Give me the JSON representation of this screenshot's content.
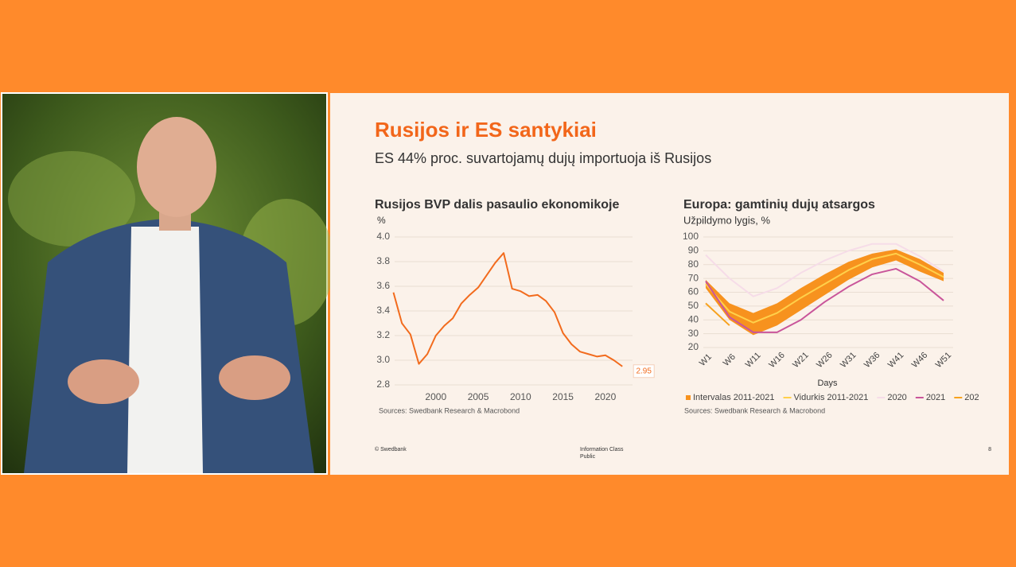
{
  "slide": {
    "title": "Rusijos ir ES santykiai",
    "subtitle": "ES 44% proc. suvartojamų dujų importuoja iš Rusijos",
    "footer": {
      "left": "© Swedbank",
      "center": [
        "Information Class",
        "Public"
      ],
      "page": "8"
    }
  },
  "chart_data": [
    {
      "type": "line",
      "title": "Rusijos BVP dalis pasaulio ekonomikoje",
      "y_label": "%",
      "source": "Sources: Swedbank Research & Macrobond",
      "x": [
        1995,
        1996,
        1997,
        1998,
        1999,
        2000,
        2001,
        2002,
        2003,
        2004,
        2005,
        2006,
        2007,
        2008,
        2009,
        2010,
        2011,
        2012,
        2013,
        2014,
        2015,
        2016,
        2017,
        2018,
        2019,
        2020,
        2021,
        2022
      ],
      "series": [
        {
          "name": null,
          "color": "#f26b1d",
          "values": [
            3.55,
            3.3,
            3.21,
            2.97,
            3.05,
            3.2,
            3.28,
            3.34,
            3.46,
            3.53,
            3.59,
            3.69,
            3.79,
            3.87,
            3.58,
            3.56,
            3.52,
            3.53,
            3.48,
            3.39,
            3.22,
            3.13,
            3.07,
            3.05,
            3.03,
            3.04,
            3.0,
            2.95
          ]
        }
      ],
      "xlim": [
        1992.7,
        2023.2
      ],
      "xticks": [
        2000,
        2005,
        2010,
        2015,
        2020
      ],
      "ylim": [
        2.8,
        4.0
      ],
      "yticks": [
        2.8,
        {
          "value": 3,
          "label": "3.0"
        },
        3.2,
        3.4,
        3.6,
        3.8,
        {
          "value": 4,
          "label": "4.0"
        }
      ],
      "grid": true
    },
    {
      "type": "band_line",
      "title": "Europa: gamtinių dujų atsargos",
      "y_label": "Užpildymo lygis, %",
      "x_label": "Days",
      "source": "Sources: Swedbank Research & Macrobond",
      "x": [
        1,
        6,
        11,
        16,
        21,
        26,
        31,
        36,
        41,
        46,
        51
      ],
      "band": {
        "name": "Intervalas 2011-2021",
        "color": "#f7921e",
        "low": [
          63,
          40,
          29,
          36,
          47,
          58,
          69,
          78,
          83,
          75,
          68
        ],
        "high": [
          69,
          52,
          45,
          52,
          63,
          73,
          82,
          88,
          91,
          84,
          74
        ]
      },
      "series": [
        {
          "name": "Vidurkis 2011-2021",
          "color": "#ffd04a",
          "values": [
            66,
            46,
            38,
            45,
            56,
            66,
            76,
            84,
            88,
            80,
            71
          ]
        },
        {
          "name": "2020",
          "color": "#f6dce8",
          "values": [
            87,
            70,
            57,
            63,
            74,
            83,
            90,
            95,
            95,
            86,
            75
          ]
        },
        {
          "name": "2021",
          "color": "#c9559a",
          "values": [
            68,
            42,
            31,
            31,
            40,
            53,
            64,
            73,
            77,
            68,
            54
          ]
        },
        {
          "name": "202",
          "color": "#f7a21e",
          "values": [
            52,
            36,
            null,
            null,
            null,
            null,
            null,
            null,
            null,
            null,
            null
          ]
        }
      ],
      "xlim": [
        0,
        53
      ],
      "xticks": [
        {
          "value": 1,
          "label": "W1"
        },
        {
          "value": 6,
          "label": "W6"
        },
        {
          "value": 11,
          "label": "W11"
        },
        {
          "value": 16,
          "label": "W16"
        },
        {
          "value": 21,
          "label": "W21"
        },
        {
          "value": 26,
          "label": "W26"
        },
        {
          "value": 31,
          "label": "W31"
        },
        {
          "value": 36,
          "label": "W36"
        },
        {
          "value": 41,
          "label": "W41"
        },
        {
          "value": 46,
          "label": "W46"
        },
        {
          "value": 51,
          "label": "W51"
        }
      ],
      "ylim": [
        20,
        100
      ],
      "yticks": [
        20,
        30,
        40,
        50,
        60,
        70,
        80,
        90,
        100
      ],
      "grid": true,
      "legend": "bottom"
    }
  ]
}
